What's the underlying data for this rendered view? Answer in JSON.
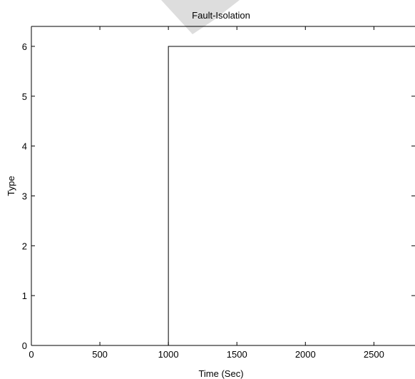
{
  "chart_data": {
    "type": "line",
    "title": "Fault-Isolation",
    "xlabel": "Time (Sec)",
    "ylabel": "Type",
    "xlim": [
      0,
      2800
    ],
    "ylim": [
      0,
      6.4
    ],
    "xticks": [
      0,
      500,
      1000,
      1500,
      2000,
      2500
    ],
    "yticks": [
      0,
      1,
      2,
      3,
      4,
      5,
      6
    ],
    "xtick_labels": [
      "0",
      "500",
      "1000",
      "1500",
      "2000",
      "2500"
    ],
    "ytick_labels": [
      "0",
      "1",
      "2",
      "3",
      "4",
      "5",
      "6"
    ],
    "grid": false,
    "series": [
      {
        "x": [
          0,
          1000,
          1000,
          2800
        ],
        "y": [
          0,
          0,
          6,
          6
        ]
      }
    ],
    "line_color": "#000000"
  }
}
